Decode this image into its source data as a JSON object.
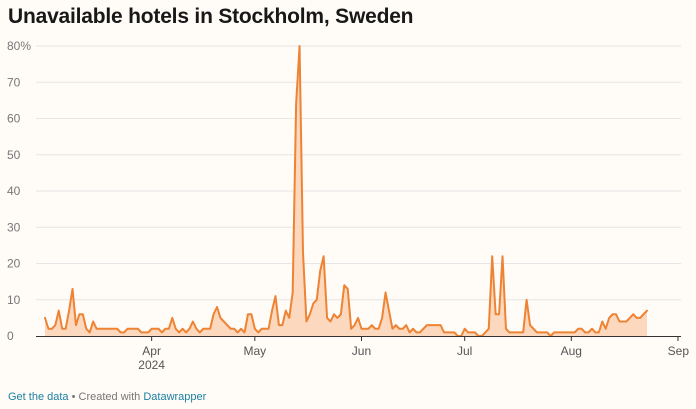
{
  "title": "Unavailable hotels in Stockholm, Sweden",
  "footer": {
    "data_link": "Get the data",
    "separator": " • ",
    "created_with": "Created with ",
    "tool_link": "Datawrapper"
  },
  "colors": {
    "line": "#ee8334",
    "fill": "#fbd4b7",
    "grid": "#e6e6e6",
    "axis": "#333333",
    "tick_text": "#777777",
    "background": "#fffbf7"
  },
  "chart_data": {
    "type": "area",
    "title": "Unavailable hotels in Stockholm, Sweden",
    "xlabel": "",
    "ylabel": "",
    "ylim": [
      0,
      80
    ],
    "grid": true,
    "x_range": [
      "2024-03-01",
      "2024-09-01"
    ],
    "y_ticks": [
      "80%",
      "70",
      "60",
      "50",
      "40",
      "30",
      "20",
      "10",
      "0"
    ],
    "y_tick_values": [
      80,
      70,
      60,
      50,
      40,
      30,
      20,
      10,
      0
    ],
    "x_ticks": [
      {
        "label": "Apr",
        "sublabel": "2024",
        "day": 31
      },
      {
        "label": "May",
        "sublabel": "",
        "day": 61
      },
      {
        "label": "Jun",
        "sublabel": "",
        "day": 92
      },
      {
        "label": "Jul",
        "sublabel": "",
        "day": 122
      },
      {
        "label": "Aug",
        "sublabel": "",
        "day": 153
      },
      {
        "label": "Sep",
        "sublabel": "",
        "day": 184
      }
    ],
    "series": [
      {
        "name": "Unavailable hotels (%)",
        "start": "2024-03-01",
        "values": [
          5,
          2,
          2,
          3,
          7,
          2,
          2,
          7,
          13,
          3,
          6,
          6,
          2,
          1,
          4,
          2,
          2,
          2,
          2,
          2,
          2,
          2,
          1,
          1,
          2,
          2,
          2,
          2,
          1,
          1,
          1,
          2,
          2,
          2,
          1,
          2,
          2,
          5,
          2,
          1,
          2,
          1,
          2,
          4,
          2,
          1,
          2,
          2,
          2,
          6,
          8,
          5,
          4,
          3,
          2,
          2,
          1,
          2,
          1,
          6,
          6,
          2,
          1,
          2,
          2,
          2,
          7,
          11,
          3,
          3,
          7,
          5,
          12,
          64,
          80,
          23,
          4,
          6,
          9,
          10,
          18,
          22,
          5,
          4,
          6,
          5,
          6,
          14,
          13,
          2,
          3,
          5,
          2,
          2,
          2,
          3,
          2,
          2,
          5,
          12,
          7,
          2,
          3,
          2,
          2,
          3,
          1,
          2,
          1,
          1,
          2,
          3,
          3,
          3,
          3,
          3,
          1,
          1,
          1,
          1,
          0,
          0,
          2,
          1,
          1,
          1,
          0,
          0,
          1,
          2,
          22,
          6,
          6,
          22,
          2,
          1,
          1,
          1,
          1,
          1,
          10,
          3,
          2,
          1,
          1,
          1,
          1,
          0,
          1,
          1,
          1,
          1,
          1,
          1,
          1,
          2,
          2,
          1,
          1,
          2,
          1,
          1,
          4,
          2,
          5,
          6,
          6,
          4,
          4,
          4,
          5,
          6,
          5,
          5,
          6,
          7
        ]
      }
    ]
  }
}
